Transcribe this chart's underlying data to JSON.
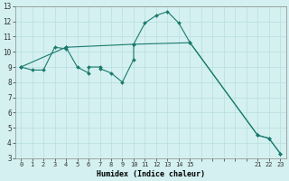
{
  "xlabel": "Humidex (Indice chaleur)",
  "line1_x": [
    0,
    1,
    2,
    3,
    4,
    4,
    5,
    6,
    6,
    7,
    7,
    8,
    9,
    10,
    10,
    11,
    12,
    13,
    14,
    15,
    21,
    22,
    23
  ],
  "line1_y": [
    9.0,
    8.8,
    8.8,
    10.3,
    10.2,
    10.3,
    9.0,
    8.6,
    9.0,
    9.0,
    8.9,
    8.6,
    8.0,
    9.5,
    10.5,
    11.9,
    12.4,
    12.65,
    11.9,
    10.6,
    4.5,
    4.3,
    3.3
  ],
  "line2_x": [
    0,
    4,
    10,
    15,
    21,
    22,
    23
  ],
  "line2_y": [
    9.0,
    10.3,
    10.5,
    10.6,
    4.5,
    4.3,
    3.3
  ],
  "line_color": "#1a7a6e",
  "bg_color": "#d4f0f0",
  "grid_color": "#b8dede",
  "xlim": [
    -0.5,
    23.5
  ],
  "ylim": [
    3,
    13
  ],
  "xticks": [
    0,
    1,
    2,
    3,
    4,
    5,
    6,
    7,
    8,
    9,
    10,
    11,
    12,
    13,
    14,
    15,
    21,
    22,
    23
  ],
  "xtick_labels": [
    "0",
    "1",
    "2",
    "3",
    "4",
    "5",
    "6",
    "7",
    "8",
    "9",
    "10",
    "11",
    "12",
    "13",
    "14",
    "15",
    "21",
    "22",
    "23"
  ],
  "yticks": [
    3,
    4,
    5,
    6,
    7,
    8,
    9,
    10,
    11,
    12,
    13
  ],
  "markersize": 2.0,
  "linewidth": 0.8
}
